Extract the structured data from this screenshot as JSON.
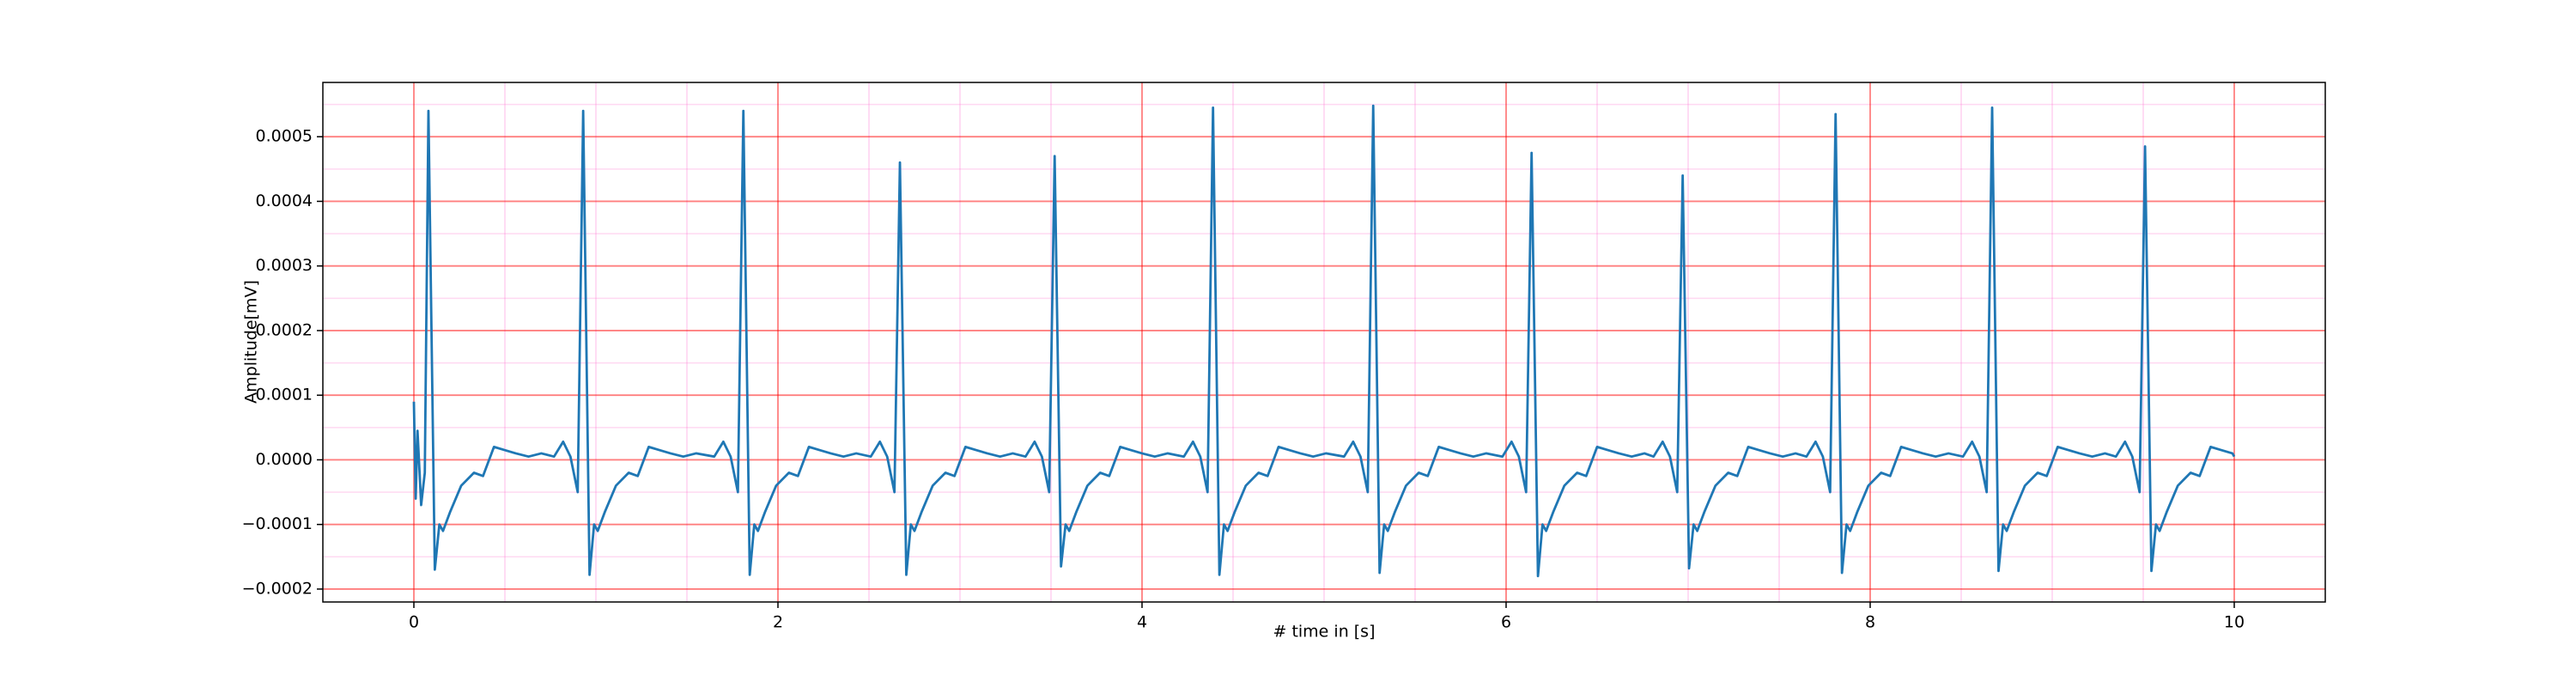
{
  "chart_data": {
    "type": "line",
    "x_label": "# time in [s]",
    "y_label": "Amplitude[mV]",
    "color": "#1f77b4",
    "grid": true,
    "minor_grid": true,
    "xlim": [
      -0.5,
      10.5
    ],
    "ylim": [
      -0.00022,
      0.000584
    ],
    "xticks": [
      0,
      2,
      4,
      6,
      8,
      10
    ],
    "yticks": [
      {
        "value": -0.0002,
        "label": "−0.0002"
      },
      {
        "value": -0.0001,
        "label": "−0.0001"
      },
      {
        "value": 0,
        "label": "0.0000"
      },
      0.0001,
      0.0002,
      0.0003,
      0.0004,
      0.0005
    ],
    "xminor": [
      0.5,
      1,
      1.5,
      2.5,
      3,
      3.5,
      4.5,
      5,
      5.5,
      6.5,
      7,
      7.5,
      8.5,
      9,
      9.5
    ],
    "yminor": [
      -0.00015,
      -5e-05,
      5e-05,
      0.00015,
      0.00025,
      0.00035,
      0.00045,
      0.00055
    ],
    "x": [
      0,
      0.01,
      0.02,
      0.04,
      0.06,
      0.08,
      0.115,
      0.14,
      0.16,
      0.2,
      0.26,
      0.33,
      0.38,
      0.44,
      0.5,
      0.56,
      0.63,
      0.7,
      0.77,
      0.82,
      0.86,
      0.9,
      0.93,
      0.965,
      0.99,
      1.01,
      1.05,
      1.11,
      1.18,
      1.23,
      1.29,
      1.35,
      1.41,
      1.48,
      1.55,
      1.65,
      1.7,
      1.74,
      1.78,
      1.81,
      1.845,
      1.87,
      1.89,
      1.93,
      1.99,
      2.06,
      2.11,
      2.17,
      2.23,
      2.29,
      2.36,
      2.43,
      2.51,
      2.56,
      2.6,
      2.64,
      2.67,
      2.705,
      2.73,
      2.75,
      2.79,
      2.85,
      2.92,
      2.97,
      3.03,
      3.09,
      3.15,
      3.22,
      3.29,
      3.36,
      3.41,
      3.45,
      3.49,
      3.52,
      3.555,
      3.58,
      3.6,
      3.64,
      3.7,
      3.77,
      3.82,
      3.88,
      3.94,
      4.0,
      4.07,
      4.14,
      4.23,
      4.28,
      4.32,
      4.36,
      4.39,
      4.425,
      4.45,
      4.47,
      4.51,
      4.57,
      4.64,
      4.69,
      4.75,
      4.81,
      4.87,
      4.94,
      5.01,
      5.11,
      5.16,
      5.2,
      5.24,
      5.27,
      5.305,
      5.33,
      5.35,
      5.39,
      5.45,
      5.52,
      5.57,
      5.63,
      5.69,
      5.75,
      5.82,
      5.89,
      5.98,
      6.03,
      6.07,
      6.11,
      6.14,
      6.175,
      6.2,
      6.22,
      6.26,
      6.32,
      6.39,
      6.44,
      6.5,
      6.56,
      6.62,
      6.69,
      6.76,
      6.81,
      6.86,
      6.9,
      6.94,
      6.97,
      7.005,
      7.03,
      7.05,
      7.09,
      7.15,
      7.22,
      7.27,
      7.33,
      7.39,
      7.45,
      7.52,
      7.59,
      7.65,
      7.7,
      7.74,
      7.78,
      7.81,
      7.845,
      7.87,
      7.89,
      7.93,
      7.99,
      8.06,
      8.11,
      8.17,
      8.23,
      8.29,
      8.36,
      8.43,
      8.51,
      8.56,
      8.6,
      8.64,
      8.67,
      8.705,
      8.73,
      8.75,
      8.79,
      8.85,
      8.92,
      8.97,
      9.03,
      9.09,
      9.15,
      9.22,
      9.29,
      9.35,
      9.4,
      9.44,
      9.48,
      9.51,
      9.545,
      9.57,
      9.59,
      9.63,
      9.69,
      9.76,
      9.81,
      9.87,
      9.93,
      9.99,
      10.0
    ],
    "values": [
      9e-05,
      -6e-05,
      4.5e-05,
      -7e-05,
      -2e-05,
      0.00054,
      -0.00017,
      -0.0001,
      -0.00011,
      -8e-05,
      -4e-05,
      -2e-05,
      -2.5e-05,
      2e-05,
      1.5e-05,
      1e-05,
      5e-06,
      1e-05,
      5e-06,
      2.8e-05,
      5e-06,
      -5e-05,
      0.00054,
      -0.000178,
      -0.0001,
      -0.00011,
      -8e-05,
      -4e-05,
      -2e-05,
      -2.5e-05,
      2e-05,
      1.5e-05,
      1e-05,
      5e-06,
      1e-05,
      5e-06,
      2.8e-05,
      5e-06,
      -5e-05,
      0.00054,
      -0.000178,
      -0.0001,
      -0.00011,
      -8e-05,
      -4e-05,
      -2e-05,
      -2.5e-05,
      2e-05,
      1.5e-05,
      1e-05,
      5e-06,
      1e-05,
      5e-06,
      2.8e-05,
      5e-06,
      -5e-05,
      0.00046,
      -0.000178,
      -0.0001,
      -0.00011,
      -8e-05,
      -4e-05,
      -2e-05,
      -2.5e-05,
      2e-05,
      1.5e-05,
      1e-05,
      5e-06,
      1e-05,
      5e-06,
      2.8e-05,
      5e-06,
      -5e-05,
      0.00047,
      -0.000165,
      -0.0001,
      -0.00011,
      -8e-05,
      -4e-05,
      -2e-05,
      -2.5e-05,
      2e-05,
      1.5e-05,
      1e-05,
      5e-06,
      1e-05,
      5e-06,
      2.8e-05,
      5e-06,
      -5e-05,
      0.000545,
      -0.000178,
      -0.0001,
      -0.00011,
      -8e-05,
      -4e-05,
      -2e-05,
      -2.5e-05,
      2e-05,
      1.5e-05,
      1e-05,
      5e-06,
      1e-05,
      5e-06,
      2.8e-05,
      5e-06,
      -5e-05,
      0.000548,
      -0.000175,
      -0.0001,
      -0.00011,
      -8e-05,
      -4e-05,
      -2e-05,
      -2.5e-05,
      2e-05,
      1.5e-05,
      1e-05,
      5e-06,
      1e-05,
      5e-06,
      2.8e-05,
      5e-06,
      -5e-05,
      0.000475,
      -0.00018,
      -0.0001,
      -0.00011,
      -8e-05,
      -4e-05,
      -2e-05,
      -2.5e-05,
      2e-05,
      1.5e-05,
      1e-05,
      5e-06,
      1e-05,
      5e-06,
      2.8e-05,
      5e-06,
      -5e-05,
      0.00044,
      -0.000168,
      -0.0001,
      -0.00011,
      -8e-05,
      -4e-05,
      -2e-05,
      -2.5e-05,
      2e-05,
      1.5e-05,
      1e-05,
      5e-06,
      1e-05,
      5e-06,
      2.8e-05,
      5e-06,
      -5e-05,
      0.000535,
      -0.000175,
      -0.0001,
      -0.00011,
      -8e-05,
      -4e-05,
      -2e-05,
      -2.5e-05,
      2e-05,
      1.5e-05,
      1e-05,
      5e-06,
      1e-05,
      5e-06,
      2.8e-05,
      5e-06,
      -5e-05,
      0.000545,
      -0.000172,
      -0.0001,
      -0.00011,
      -8e-05,
      -4e-05,
      -2e-05,
      -2.5e-05,
      2e-05,
      1.5e-05,
      1e-05,
      5e-06,
      1e-05,
      5e-06,
      2.8e-05,
      5e-06,
      -5e-05,
      0.000485,
      -0.000172,
      -0.0001,
      -0.00011,
      -8e-05,
      -4e-05,
      -2e-05,
      -2.5e-05,
      2e-05,
      1.5e-05,
      1e-05,
      5e-06
    ]
  }
}
